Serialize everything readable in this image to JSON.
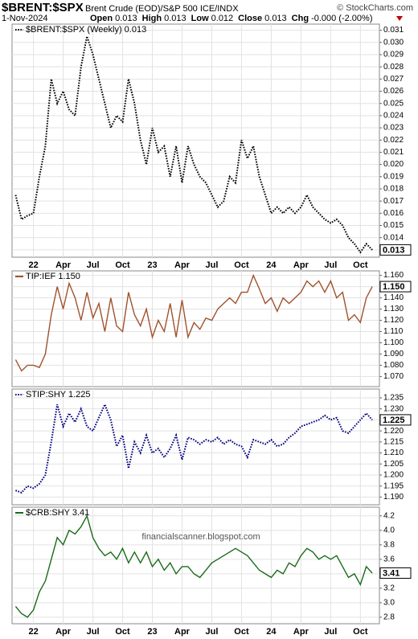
{
  "header": {
    "symbol": "$BRENT:$SPX",
    "description": "Brent Crude (EOD)/S&P 500 ICE/INDX",
    "copyright": "© StockCharts.com",
    "date": "1-Nov-2024",
    "quote": [
      {
        "label": "Open",
        "value": "0.013"
      },
      {
        "label": "High",
        "value": "0.013"
      },
      {
        "label": "Low",
        "value": "0.012"
      },
      {
        "label": "Close",
        "value": "0.013"
      },
      {
        "label": "Chg",
        "value": "-0.000 (-2.00%)"
      }
    ]
  },
  "chart_data": [
    {
      "type": "line",
      "grid": true,
      "xlim": [
        2021.82,
        2024.91
      ],
      "ylim": [
        0.0124,
        0.0315
      ],
      "xticks": [
        {
          "value": 2022,
          "label": "22"
        },
        {
          "value": 2022.25,
          "label": "Apr"
        },
        {
          "value": 2022.5,
          "label": "Jul"
        },
        {
          "value": 2022.75,
          "label": "Oct"
        },
        {
          "value": 2023,
          "label": "23"
        },
        {
          "value": 2023.25,
          "label": "Apr"
        },
        {
          "value": 2023.5,
          "label": "Jul"
        },
        {
          "value": 2023.75,
          "label": "Oct"
        },
        {
          "value": 2024,
          "label": "24"
        },
        {
          "value": 2024.25,
          "label": "Apr"
        },
        {
          "value": 2024.5,
          "label": "Jul"
        },
        {
          "value": 2024.75,
          "label": "Oct"
        }
      ],
      "yticks": [
        0.013,
        0.014,
        0.015,
        0.016,
        0.017,
        0.018,
        0.019,
        {
          "value": 0.02,
          "label": "0.020"
        },
        0.021,
        0.022,
        0.023,
        0.024,
        0.025,
        0.026,
        0.027,
        0.028,
        0.029,
        {
          "value": 0.03,
          "label": "0.030"
        },
        0.031
      ],
      "x": [
        2021.85,
        2021.9,
        2021.95,
        2022,
        2022.05,
        2022.1,
        2022.15,
        2022.2,
        2022.25,
        2022.3,
        2022.35,
        2022.4,
        2022.45,
        2022.5,
        2022.55,
        2022.6,
        2022.65,
        2022.7,
        2022.75,
        2022.8,
        2022.85,
        2022.9,
        2022.95,
        2023,
        2023.05,
        2023.1,
        2023.15,
        2023.2,
        2023.25,
        2023.3,
        2023.35,
        2023.4,
        2023.45,
        2023.5,
        2023.55,
        2023.6,
        2023.65,
        2023.7,
        2023.75,
        2023.8,
        2023.85,
        2023.9,
        2023.95,
        2024,
        2024.05,
        2024.1,
        2024.15,
        2024.2,
        2024.25,
        2024.3,
        2024.35,
        2024.4,
        2024.45,
        2024.5,
        2024.55,
        2024.6,
        2024.65,
        2024.7,
        2024.75,
        2024.8,
        2024.85
      ],
      "series": [
        {
          "name": "$BRENT:$SPX (Weekly) 0.013",
          "color": "#000000",
          "line_style": "dotted",
          "values": [
            0.0175,
            0.0155,
            0.0158,
            0.016,
            0.019,
            0.0215,
            0.027,
            0.025,
            0.026,
            0.0245,
            0.024,
            0.028,
            0.0305,
            0.029,
            0.027,
            0.025,
            0.023,
            0.024,
            0.0235,
            0.027,
            0.025,
            0.022,
            0.02,
            0.023,
            0.021,
            0.0215,
            0.019,
            0.0215,
            0.0185,
            0.0215,
            0.02,
            0.019,
            0.0185,
            0.0175,
            0.0165,
            0.017,
            0.019,
            0.0185,
            0.022,
            0.0205,
            0.0215,
            0.019,
            0.0175,
            0.016,
            0.0165,
            0.016,
            0.0165,
            0.016,
            0.0165,
            0.0175,
            0.0165,
            0.016,
            0.0155,
            0.0152,
            0.0155,
            0.015,
            0.014,
            0.0135,
            0.0128,
            0.0135,
            0.013
          ]
        }
      ],
      "last_value_label": "0.013"
    },
    {
      "type": "line",
      "grid": true,
      "xlim": [
        2021.82,
        2024.91
      ],
      "ylim": [
        1.061,
        1.164
      ],
      "yticks": [
        {
          "value": 1.07,
          "label": "1.070"
        },
        {
          "value": 1.08,
          "label": "1.080"
        },
        {
          "value": 1.09,
          "label": "1.090"
        },
        {
          "value": 1.1,
          "label": "1.100"
        },
        {
          "value": 1.11,
          "label": "1.110"
        },
        {
          "value": 1.12,
          "label": "1.120"
        },
        {
          "value": 1.13,
          "label": "1.130"
        },
        {
          "value": 1.14,
          "label": "1.140"
        },
        {
          "value": 1.15,
          "label": "1.150"
        },
        {
          "value": 1.16,
          "label": "1.160"
        }
      ],
      "x": [
        2021.85,
        2021.9,
        2021.95,
        2022,
        2022.05,
        2022.1,
        2022.15,
        2022.2,
        2022.25,
        2022.3,
        2022.35,
        2022.4,
        2022.45,
        2022.5,
        2022.55,
        2022.6,
        2022.65,
        2022.7,
        2022.75,
        2022.8,
        2022.85,
        2022.9,
        2022.95,
        2023,
        2023.05,
        2023.1,
        2023.15,
        2023.2,
        2023.25,
        2023.3,
        2023.35,
        2023.4,
        2023.45,
        2023.5,
        2023.55,
        2023.6,
        2023.65,
        2023.7,
        2023.75,
        2023.8,
        2023.85,
        2023.9,
        2023.95,
        2024,
        2024.05,
        2024.1,
        2024.15,
        2024.2,
        2024.25,
        2024.3,
        2024.35,
        2024.4,
        2024.45,
        2024.5,
        2024.55,
        2024.6,
        2024.65,
        2024.7,
        2024.75,
        2024.8,
        2024.85
      ],
      "series": [
        {
          "name": "TIP:IEF 1.150",
          "color": "#a0522d",
          "line_style": "solid",
          "values": [
            1.085,
            1.075,
            1.08,
            1.08,
            1.078,
            1.09,
            1.125,
            1.15,
            1.13,
            1.153,
            1.14,
            1.12,
            1.145,
            1.122,
            1.135,
            1.11,
            1.14,
            1.115,
            1.11,
            1.145,
            1.125,
            1.115,
            1.13,
            1.105,
            1.12,
            1.11,
            1.135,
            1.105,
            1.138,
            1.105,
            1.118,
            1.112,
            1.122,
            1.12,
            1.13,
            1.135,
            1.14,
            1.135,
            1.145,
            1.145,
            1.16,
            1.148,
            1.135,
            1.14,
            1.128,
            1.14,
            1.135,
            1.14,
            1.145,
            1.155,
            1.15,
            1.155,
            1.145,
            1.155,
            1.14,
            1.145,
            1.12,
            1.125,
            1.118,
            1.14,
            1.15
          ]
        }
      ],
      "last_value_label": "1.150"
    },
    {
      "type": "line",
      "grid": true,
      "xlim": [
        2021.82,
        2024.91
      ],
      "ylim": [
        1.1865,
        1.239
      ],
      "yticks": [
        {
          "value": 1.19,
          "label": "1.190"
        },
        1.195,
        {
          "value": 1.2,
          "label": "1.200"
        },
        1.205,
        {
          "value": 1.21,
          "label": "1.210"
        },
        1.215,
        {
          "value": 1.22,
          "label": "1.220"
        },
        1.225,
        {
          "value": 1.23,
          "label": "1.230"
        },
        1.235
      ],
      "x": [
        2021.85,
        2021.9,
        2021.95,
        2022,
        2022.05,
        2022.1,
        2022.15,
        2022.2,
        2022.25,
        2022.3,
        2022.35,
        2022.4,
        2022.45,
        2022.5,
        2022.55,
        2022.6,
        2022.65,
        2022.7,
        2022.75,
        2022.8,
        2022.85,
        2022.9,
        2022.95,
        2023,
        2023.05,
        2023.1,
        2023.15,
        2023.2,
        2023.25,
        2023.3,
        2023.35,
        2023.4,
        2023.45,
        2023.5,
        2023.55,
        2023.6,
        2023.65,
        2023.7,
        2023.75,
        2023.8,
        2023.85,
        2023.9,
        2023.95,
        2024,
        2024.05,
        2024.1,
        2024.15,
        2024.2,
        2024.25,
        2024.3,
        2024.35,
        2024.4,
        2024.45,
        2024.5,
        2024.55,
        2024.6,
        2024.65,
        2024.7,
        2024.75,
        2024.8,
        2024.85
      ],
      "series": [
        {
          "name": "STIP:SHY 1.225",
          "color": "#00007f",
          "line_style": "dotted",
          "values": [
            1.193,
            1.192,
            1.195,
            1.194,
            1.196,
            1.2,
            1.215,
            1.232,
            1.222,
            1.228,
            1.224,
            1.23,
            1.222,
            1.22,
            1.226,
            1.232,
            1.225,
            1.213,
            1.218,
            1.203,
            1.215,
            1.21,
            1.218,
            1.21,
            1.212,
            1.208,
            1.212,
            1.218,
            1.207,
            1.217,
            1.216,
            1.214,
            1.216,
            1.215,
            1.217,
            1.214,
            1.216,
            1.214,
            1.213,
            1.208,
            1.216,
            1.215,
            1.214,
            1.216,
            1.213,
            1.214,
            1.217,
            1.219,
            1.222,
            1.223,
            1.224,
            1.225,
            1.227,
            1.225,
            1.226,
            1.22,
            1.219,
            1.222,
            1.225,
            1.228,
            1.225
          ]
        }
      ],
      "last_value_label": "1.225"
    },
    {
      "type": "line",
      "grid": true,
      "xlim": [
        2021.82,
        2024.91
      ],
      "ylim": [
        2.71,
        4.32
      ],
      "xticks": [
        {
          "value": 2022,
          "label": "22"
        },
        {
          "value": 2022.25,
          "label": "Apr"
        },
        {
          "value": 2022.5,
          "label": "Jul"
        },
        {
          "value": 2022.75,
          "label": "Oct"
        },
        {
          "value": 2023,
          "label": "23"
        },
        {
          "value": 2023.25,
          "label": "Apr"
        },
        {
          "value": 2023.5,
          "label": "Jul"
        },
        {
          "value": 2023.75,
          "label": "Oct"
        },
        {
          "value": 2024,
          "label": "24"
        },
        {
          "value": 2024.25,
          "label": "Apr"
        },
        {
          "value": 2024.5,
          "label": "Jul"
        },
        {
          "value": 2024.75,
          "label": "Oct"
        }
      ],
      "yticks": [
        2.8,
        {
          "value": 3,
          "label": "3.0"
        },
        3.2,
        3.4,
        3.6,
        3.8,
        {
          "value": 4,
          "label": "4.0"
        },
        4.2
      ],
      "x": [
        2021.85,
        2021.9,
        2021.95,
        2022,
        2022.05,
        2022.1,
        2022.15,
        2022.2,
        2022.25,
        2022.3,
        2022.35,
        2022.4,
        2022.45,
        2022.5,
        2022.55,
        2022.6,
        2022.65,
        2022.7,
        2022.75,
        2022.8,
        2022.85,
        2022.9,
        2022.95,
        2023,
        2023.05,
        2023.1,
        2023.15,
        2023.2,
        2023.25,
        2023.3,
        2023.35,
        2023.4,
        2023.45,
        2023.5,
        2023.55,
        2023.6,
        2023.65,
        2023.7,
        2023.75,
        2023.8,
        2023.85,
        2023.9,
        2023.95,
        2024,
        2024.05,
        2024.1,
        2024.15,
        2024.2,
        2024.25,
        2024.3,
        2024.35,
        2024.4,
        2024.45,
        2024.5,
        2024.55,
        2024.6,
        2024.65,
        2024.7,
        2024.75,
        2024.8,
        2024.85
      ],
      "series": [
        {
          "name": "$CRB:SHY 3.41",
          "color": "#1a6b1a",
          "line_style": "solid",
          "values": [
            2.95,
            2.85,
            2.8,
            2.9,
            3.15,
            3.3,
            3.6,
            3.9,
            3.8,
            4.0,
            3.95,
            4.05,
            4.2,
            3.9,
            3.75,
            3.65,
            3.7,
            3.6,
            3.75,
            3.55,
            3.7,
            3.55,
            3.7,
            3.5,
            3.6,
            3.45,
            3.55,
            3.4,
            3.5,
            3.5,
            3.4,
            3.35,
            3.45,
            3.55,
            3.6,
            3.65,
            3.7,
            3.75,
            3.7,
            3.65,
            3.55,
            3.45,
            3.4,
            3.35,
            3.45,
            3.4,
            3.55,
            3.5,
            3.65,
            3.75,
            3.7,
            3.6,
            3.65,
            3.6,
            3.65,
            3.5,
            3.35,
            3.4,
            3.25,
            3.5,
            3.41
          ]
        }
      ],
      "last_value_label": "3.41",
      "annotation": "financialscanner.blogspot.com"
    }
  ]
}
